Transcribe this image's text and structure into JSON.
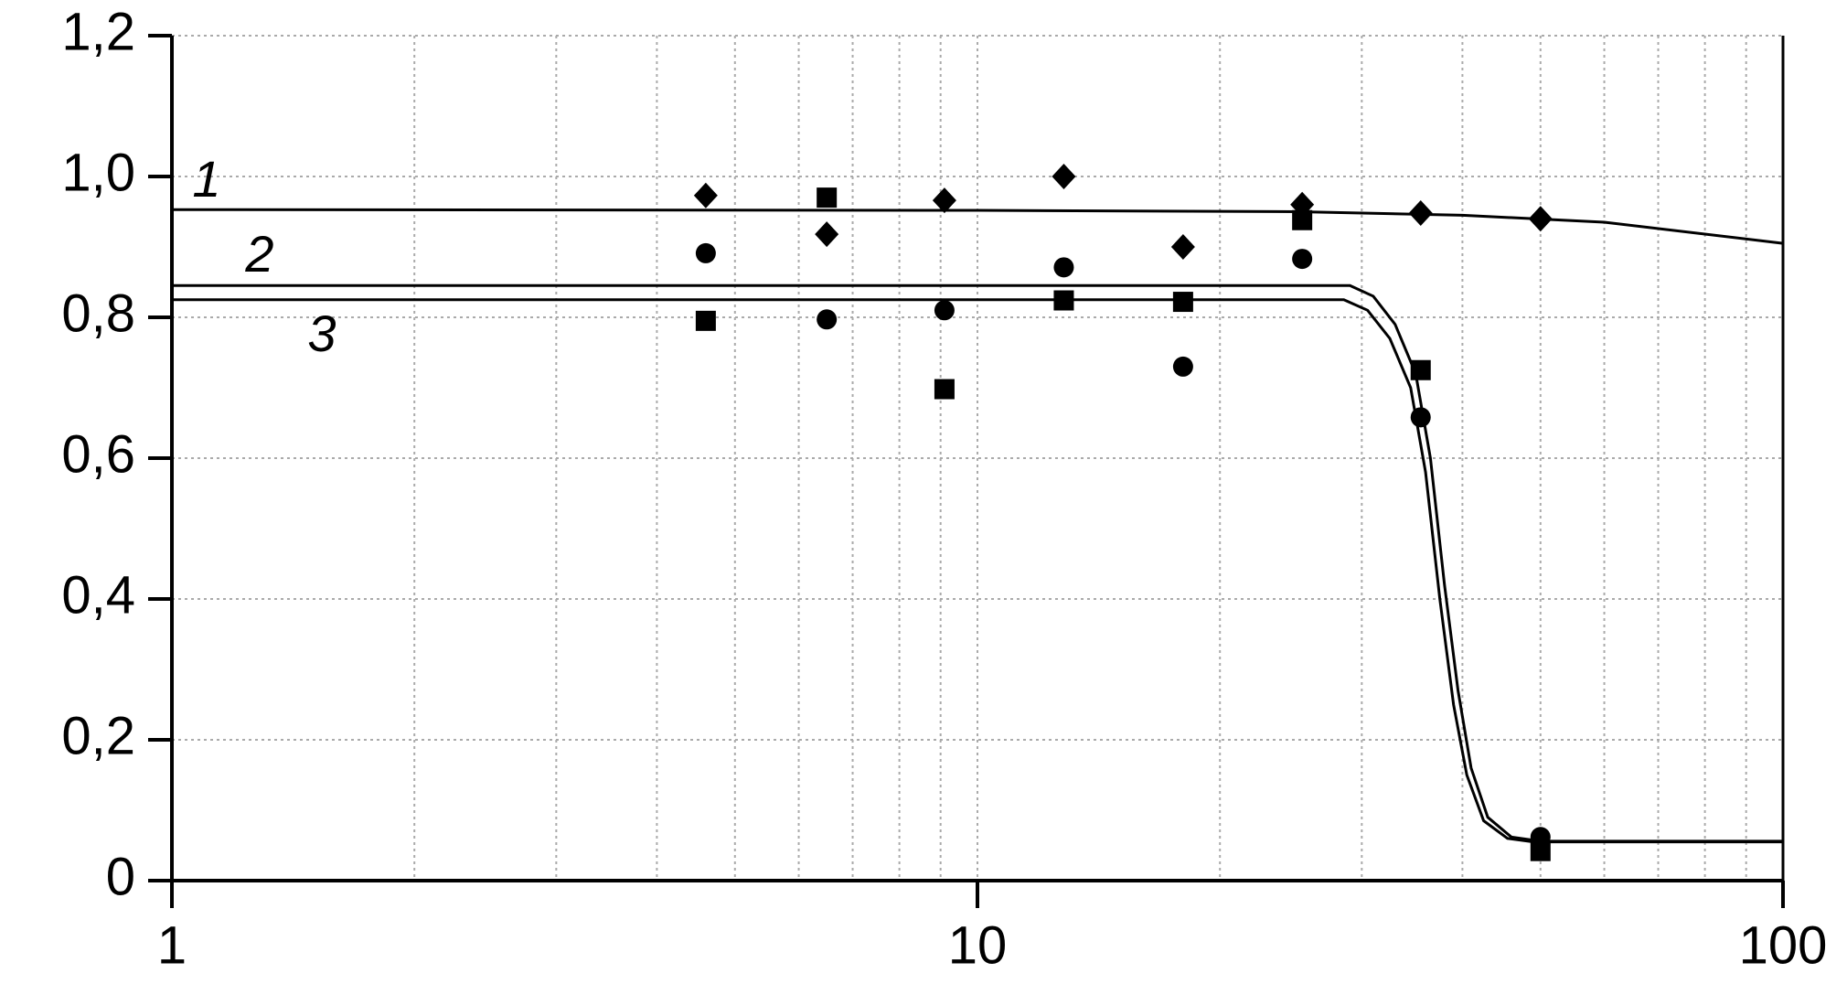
{
  "chart_data": {
    "type": "scatter",
    "xscale": "log",
    "grid": true,
    "xlim": [
      1,
      100
    ],
    "xticks": [
      1,
      10,
      100
    ],
    "ylim": [
      0,
      1.2
    ],
    "yticks": [
      0,
      {
        "value": 0.2,
        "label": "0,2"
      },
      {
        "value": 0.4,
        "label": "0,4"
      },
      {
        "value": 0.6,
        "label": "0,6"
      },
      {
        "value": 0.8,
        "label": "0,8"
      },
      {
        "value": 1.0,
        "label": "1,0"
      },
      {
        "value": 1.2,
        "label": "1,2"
      }
    ],
    "annotations": [
      "1",
      "2",
      "3"
    ],
    "series": [
      {
        "marker": "diamond",
        "color": "#000000",
        "x": [
          4.6,
          6.5,
          9.1,
          12.8,
          18,
          25.3,
          35.5,
          50
        ],
        "values": [
          0.973,
          0.918,
          0.966,
          1.0,
          0.9,
          0.96,
          0.948,
          0.94
        ]
      },
      {
        "marker": "circle",
        "color": "#000000",
        "x": [
          4.6,
          6.5,
          9.1,
          12.8,
          18,
          25.3,
          35.5,
          50
        ],
        "values": [
          0.891,
          0.797,
          0.81,
          0.871,
          0.73,
          0.883,
          0.658,
          0.062
        ]
      },
      {
        "marker": "square",
        "color": "#000000",
        "x": [
          4.6,
          6.5,
          9.1,
          12.8,
          18,
          25.3,
          35.5,
          50
        ],
        "values": [
          0.795,
          0.97,
          0.698,
          0.824,
          0.822,
          0.938,
          0.725,
          0.042
        ]
      }
    ],
    "lines": [
      {
        "color": "#000000",
        "x": [
          1,
          10,
          25,
          40,
          60,
          100
        ],
        "values": [
          0.953,
          0.952,
          0.95,
          0.945,
          0.935,
          0.905
        ]
      },
      {
        "color": "#000000",
        "x": [
          1,
          29,
          31,
          33,
          35,
          36.5,
          38,
          39.5,
          41,
          43,
          46,
          50,
          100
        ],
        "values": [
          0.845,
          0.845,
          0.83,
          0.79,
          0.72,
          0.6,
          0.42,
          0.27,
          0.16,
          0.09,
          0.062,
          0.056,
          0.056
        ]
      },
      {
        "color": "#000000",
        "x": [
          1,
          28.5,
          30.5,
          32.5,
          34.5,
          36,
          37.5,
          39,
          40.5,
          42.5,
          45.5,
          49,
          100
        ],
        "values": [
          0.825,
          0.825,
          0.81,
          0.77,
          0.7,
          0.58,
          0.4,
          0.25,
          0.15,
          0.085,
          0.06,
          0.055,
          0.055
        ]
      }
    ]
  }
}
